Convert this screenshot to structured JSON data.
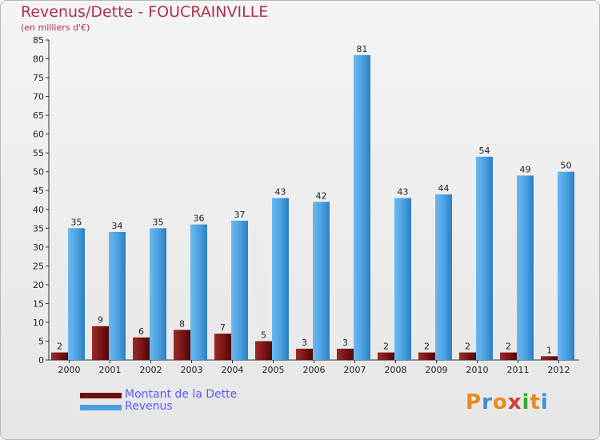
{
  "title": "Revenus/Dette - FOUCRAINVILLE",
  "subtitle": "(en milliers d'€)",
  "logo": {
    "letters": [
      "P",
      "r",
      "o",
      "x",
      "i",
      "t",
      "i"
    ],
    "colors": [
      "#e68a1e",
      "#3a8fd6",
      "#e68a1e",
      "#d63a3a",
      "#3aa83a",
      "#e68a1e",
      "#3a8fd6"
    ]
  },
  "colors": {
    "dette": "#6b0f0f",
    "revenus": "#4a9fe0",
    "axis_text": "#222222"
  },
  "chart_data": {
    "type": "bar",
    "title": "Revenus/Dette - FOUCRAINVILLE",
    "ylabel": "(en milliers d'€)",
    "categories": [
      "2000",
      "2001",
      "2002",
      "2003",
      "2004",
      "2005",
      "2006",
      "2007",
      "2008",
      "2009",
      "2010",
      "2011",
      "2012"
    ],
    "series": [
      {
        "name": "Montant de la Dette",
        "values": [
          2,
          9,
          6,
          8,
          7,
          5,
          3,
          3,
          2,
          2,
          2,
          2,
          1
        ]
      },
      {
        "name": "Revenus",
        "values": [
          35,
          34,
          35,
          36,
          37,
          43,
          42,
          81,
          43,
          44,
          54,
          49,
          50
        ]
      }
    ],
    "ylim": [
      0,
      85
    ],
    "yticks": [
      0,
      5,
      10,
      15,
      20,
      25,
      30,
      35,
      40,
      45,
      50,
      55,
      60,
      65,
      70,
      75,
      80,
      85
    ],
    "grid": false,
    "legend": "bottom-left"
  }
}
